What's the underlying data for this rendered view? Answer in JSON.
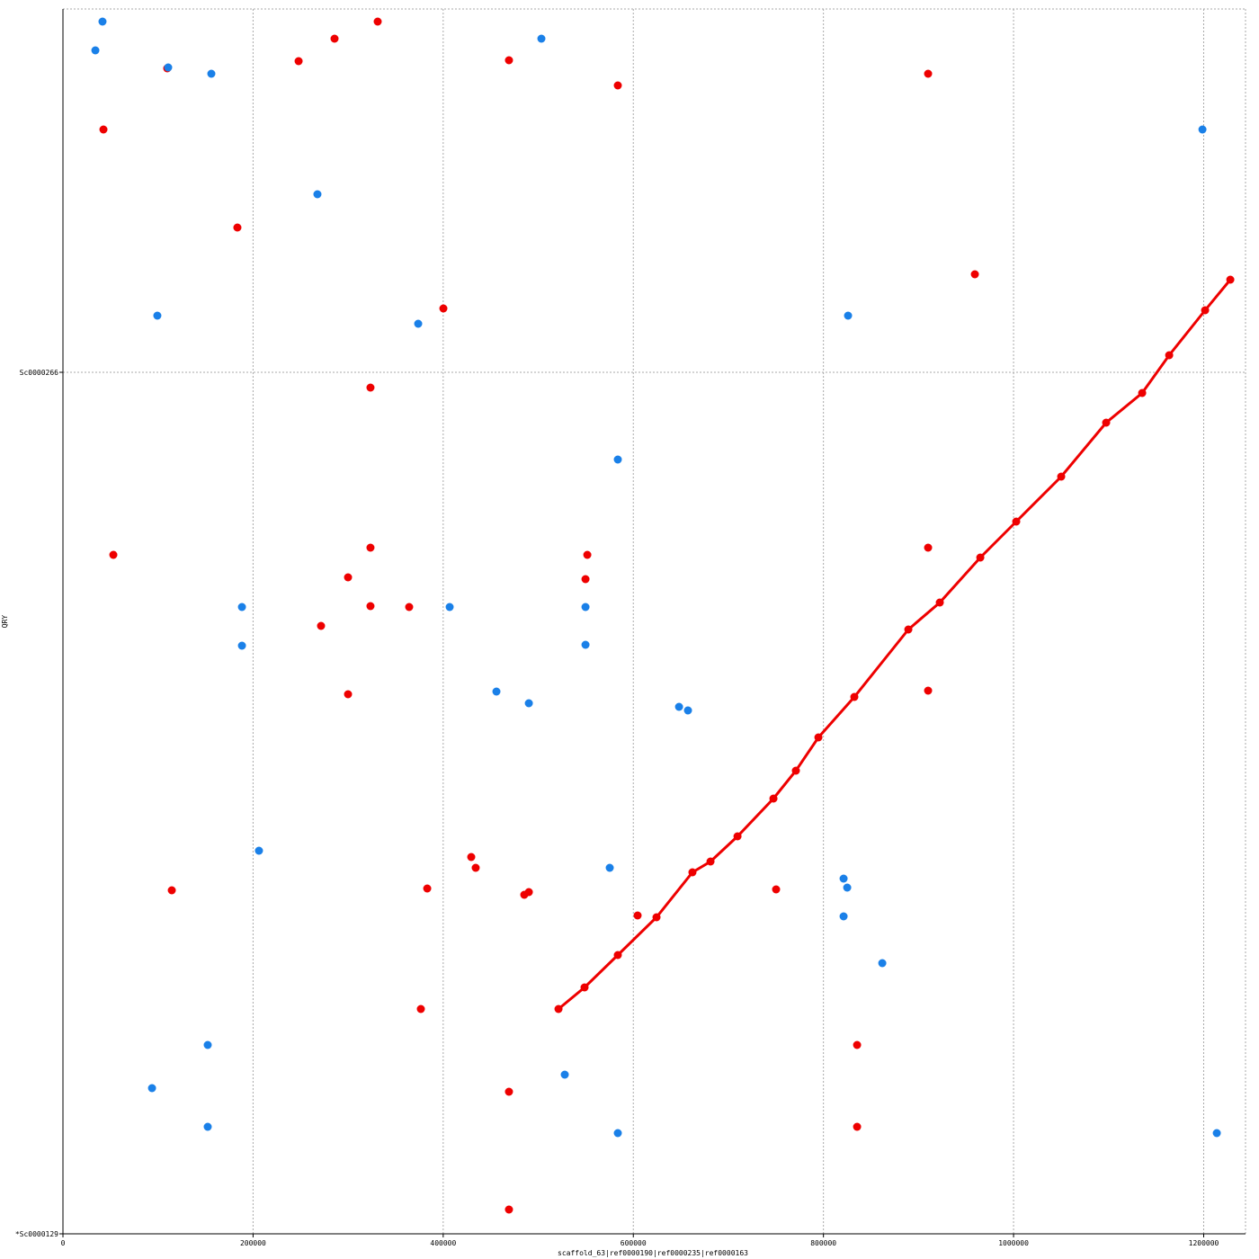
{
  "chart_data": {
    "type": "scatter",
    "xlabel": "scaffold_63|ref0000190|ref0000235|ref0000163",
    "ylabel": "QRY",
    "xlim": [
      0,
      1244000
    ],
    "ylim": [
      0,
      1362
    ],
    "xticks": [
      0,
      200000,
      400000,
      600000,
      800000,
      1000000,
      1200000
    ],
    "yticks": [
      {
        "value": 0,
        "label": "*Sc0000129"
      },
      {
        "value": 958,
        "label": "Sc0000266"
      }
    ],
    "grid": true,
    "series": [
      {
        "color": "#ee0000",
        "line": true,
        "x": [
          521300,
          548700,
          583700,
          624400,
          662200,
          681200,
          709600,
          747400,
          771000,
          794700,
          832500,
          889300,
          922400,
          965000,
          1002800,
          1050100,
          1097400,
          1135300,
          1163700,
          1201500,
          1228000
        ],
        "values": [
          250,
          274,
          310,
          352,
          402,
          414,
          442,
          484,
          515,
          552,
          597,
          672,
          702,
          752,
          792,
          842,
          902,
          935,
          977,
          1027,
          1061
        ]
      },
      {
        "color": "#ee0000",
        "line": false,
        "x": [
          331100,
          285700,
          247900,
          469200,
          109700,
          583700,
          910100,
          42600,
          183500,
          959300,
          400200,
          323500,
          53000,
          323500,
          551600,
          299900,
          549700,
          910100,
          323500,
          364200,
          271500,
          299900,
          910100,
          429500,
          434200,
          114500,
          383200,
          490100,
          485300,
          750200,
          604500,
          376500,
          835400,
          469200,
          835400,
          469200
        ],
        "values": [
          1348,
          1329,
          1304,
          1305,
          1296,
          1277,
          1290,
          1228,
          1119,
          1067,
          1029,
          941,
          755,
          763,
          755,
          730,
          728,
          763,
          698,
          697,
          676,
          600,
          604,
          419,
          407,
          382,
          384,
          380,
          377,
          383,
          354,
          250,
          210,
          158,
          119,
          27
        ]
      },
      {
        "color": "#1a80e8",
        "line": false,
        "x": [
          41600,
          34100,
          503300,
          110700,
          156100,
          1198700,
          267700,
          99300,
          373700,
          825900,
          583700,
          188300,
          406800,
          549700,
          188300,
          549700,
          456000,
          490100,
          648100,
          657500,
          206200,
          575200,
          821200,
          825000,
          821200,
          861900,
          152300,
          527900,
          93700,
          152300,
          583700,
          1213800
        ],
        "values": [
          1348,
          1316,
          1329,
          1297,
          1290,
          1228,
          1156,
          1021,
          1012,
          1021,
          861,
          697,
          697,
          697,
          654,
          655,
          603,
          590,
          586,
          582,
          426,
          407,
          395,
          385,
          353,
          301,
          210,
          177,
          162,
          119,
          112,
          112
        ]
      }
    ]
  }
}
